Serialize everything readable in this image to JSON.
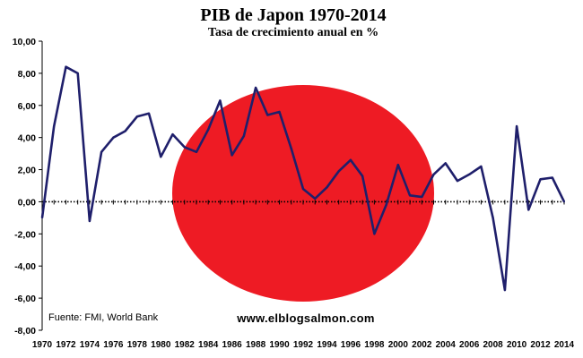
{
  "chart_data": {
    "type": "line",
    "title": "PIB de Japon 1970-2014",
    "subtitle": "Tasa de crecimiento anual en %",
    "xlabel": "",
    "ylabel": "",
    "ylim": [
      -8,
      10
    ],
    "xlim": [
      1970,
      2014
    ],
    "grid": false,
    "y_ticks": [
      "10,00",
      "8,00",
      "6,00",
      "4,00",
      "2,00",
      "0,00",
      "-2,00",
      "-4,00",
      "-6,00",
      "-8,00"
    ],
    "x_ticks": [
      "1970",
      "1972",
      "1974",
      "1976",
      "1978",
      "1980",
      "1982",
      "1984",
      "1986",
      "1988",
      "1990",
      "1992",
      "1994",
      "1996",
      "1998",
      "2000",
      "2002",
      "2004",
      "2006",
      "2008",
      "2010",
      "2012",
      "2014"
    ],
    "x": [
      1970,
      1971,
      1972,
      1973,
      1974,
      1975,
      1976,
      1977,
      1978,
      1979,
      1980,
      1981,
      1982,
      1983,
      1984,
      1985,
      1986,
      1987,
      1988,
      1989,
      1990,
      1991,
      1992,
      1993,
      1994,
      1995,
      1996,
      1997,
      1998,
      1999,
      2000,
      2001,
      2002,
      2003,
      2004,
      2005,
      2006,
      2007,
      2008,
      2009,
      2010,
      2011,
      2012,
      2013,
      2014
    ],
    "series": [
      {
        "name": "",
        "color": "#1f1f6b",
        "values": [
          -1.0,
          4.7,
          8.4,
          8.0,
          -1.2,
          3.1,
          4.0,
          4.4,
          5.3,
          5.5,
          2.8,
          4.2,
          3.4,
          3.1,
          4.5,
          6.3,
          2.9,
          4.1,
          7.1,
          5.4,
          5.6,
          3.3,
          0.8,
          0.2,
          0.9,
          1.9,
          2.6,
          1.6,
          -2.0,
          -0.2,
          2.3,
          0.4,
          0.3,
          1.7,
          2.4,
          1.3,
          1.7,
          2.2,
          -1.0,
          -5.5,
          4.7,
          -0.5,
          1.4,
          1.5,
          0.0
        ]
      }
    ],
    "flag_color": "#ee1b24"
  },
  "source": "Fuente: FMI, World Bank",
  "watermark": "www.elblogsalmon.com"
}
